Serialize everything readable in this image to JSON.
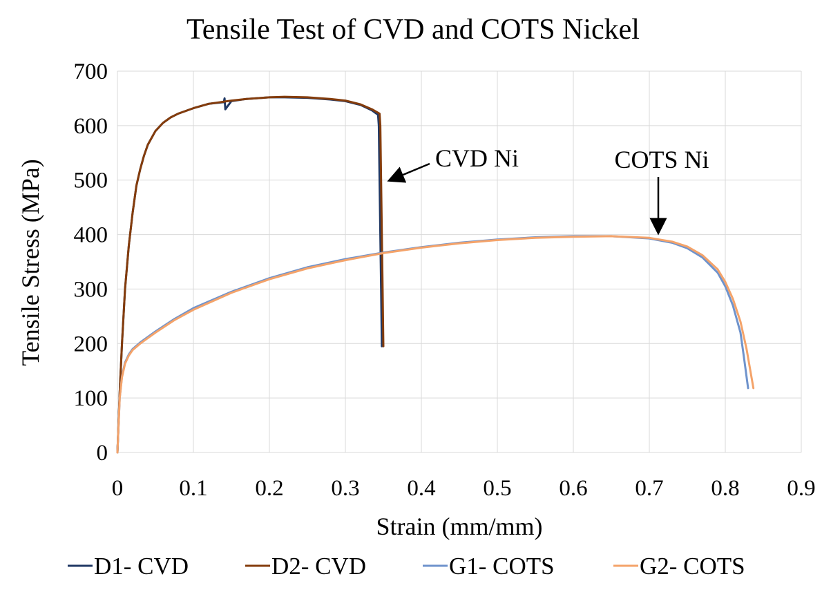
{
  "chart_data": {
    "type": "line",
    "title": "Tensile Test of CVD and COTS Nickel",
    "xlabel": "Strain (mm/mm)",
    "ylabel": "Tensile Stress (MPa)",
    "xlim": [
      0,
      0.9
    ],
    "ylim": [
      0,
      700
    ],
    "xticks": [
      "0",
      "0.1",
      "0.2",
      "0.3",
      "0.4",
      "0.5",
      "0.6",
      "0.7",
      "0.8",
      "0.9"
    ],
    "yticks": [
      "0",
      "100",
      "200",
      "300",
      "400",
      "500",
      "600",
      "700"
    ],
    "grid": true,
    "legend_position": "bottom",
    "series": [
      {
        "name": "D1- CVD",
        "color": "#203864",
        "x": [
          0,
          0.003,
          0.006,
          0.01,
          0.015,
          0.02,
          0.025,
          0.03,
          0.035,
          0.04,
          0.05,
          0.06,
          0.07,
          0.08,
          0.1,
          0.12,
          0.14,
          0.141,
          0.142,
          0.15,
          0.17,
          0.2,
          0.22,
          0.25,
          0.28,
          0.3,
          0.32,
          0.335,
          0.343,
          0.344,
          0.345,
          0.347,
          0.348
        ],
        "y": [
          0,
          110,
          200,
          300,
          380,
          440,
          490,
          520,
          545,
          565,
          590,
          605,
          615,
          622,
          632,
          640,
          643,
          650,
          630,
          645,
          649,
          652,
          652,
          651,
          648,
          645,
          638,
          628,
          620,
          600,
          500,
          300,
          195
        ]
      },
      {
        "name": "D2- CVD",
        "color": "#843c0c",
        "x": [
          0,
          0.003,
          0.006,
          0.01,
          0.015,
          0.02,
          0.025,
          0.03,
          0.035,
          0.04,
          0.05,
          0.06,
          0.07,
          0.08,
          0.1,
          0.12,
          0.15,
          0.17,
          0.2,
          0.22,
          0.25,
          0.28,
          0.3,
          0.32,
          0.335,
          0.345,
          0.346,
          0.347,
          0.349,
          0.35
        ],
        "y": [
          0,
          110,
          200,
          300,
          380,
          440,
          490,
          520,
          545,
          565,
          590,
          605,
          615,
          622,
          632,
          640,
          646,
          649,
          652,
          653,
          652,
          649,
          646,
          639,
          630,
          622,
          600,
          500,
          300,
          195
        ]
      },
      {
        "name": "G1- COTS",
        "color": "#6f93cc",
        "x": [
          0,
          0.003,
          0.006,
          0.01,
          0.015,
          0.02,
          0.03,
          0.05,
          0.075,
          0.1,
          0.15,
          0.2,
          0.25,
          0.3,
          0.35,
          0.4,
          0.45,
          0.5,
          0.55,
          0.6,
          0.65,
          0.7,
          0.73,
          0.75,
          0.77,
          0.79,
          0.8,
          0.81,
          0.82,
          0.825,
          0.83
        ],
        "y": [
          0,
          100,
          140,
          165,
          180,
          190,
          202,
          222,
          245,
          265,
          295,
          320,
          340,
          355,
          367,
          377,
          385,
          391,
          395,
          397,
          397,
          393,
          385,
          375,
          358,
          330,
          305,
          270,
          220,
          170,
          118
        ]
      },
      {
        "name": "G2- COTS",
        "color": "#f4a36a",
        "x": [
          0,
          0.003,
          0.006,
          0.01,
          0.015,
          0.02,
          0.03,
          0.05,
          0.075,
          0.1,
          0.15,
          0.2,
          0.25,
          0.3,
          0.35,
          0.4,
          0.45,
          0.5,
          0.55,
          0.6,
          0.65,
          0.7,
          0.73,
          0.75,
          0.77,
          0.79,
          0.8,
          0.81,
          0.82,
          0.828,
          0.833,
          0.837
        ],
        "y": [
          0,
          100,
          138,
          163,
          178,
          188,
          200,
          220,
          243,
          262,
          293,
          318,
          338,
          353,
          366,
          376,
          384,
          390,
          394,
          396,
          397,
          394,
          387,
          378,
          362,
          336,
          313,
          282,
          240,
          190,
          150,
          118
        ]
      }
    ],
    "annotations": [
      {
        "text": "CVD Ni",
        "arrow_to": [
          0.35,
          500
        ]
      },
      {
        "text": "COTS Ni",
        "arrow_to": [
          0.71,
          400
        ]
      }
    ]
  }
}
